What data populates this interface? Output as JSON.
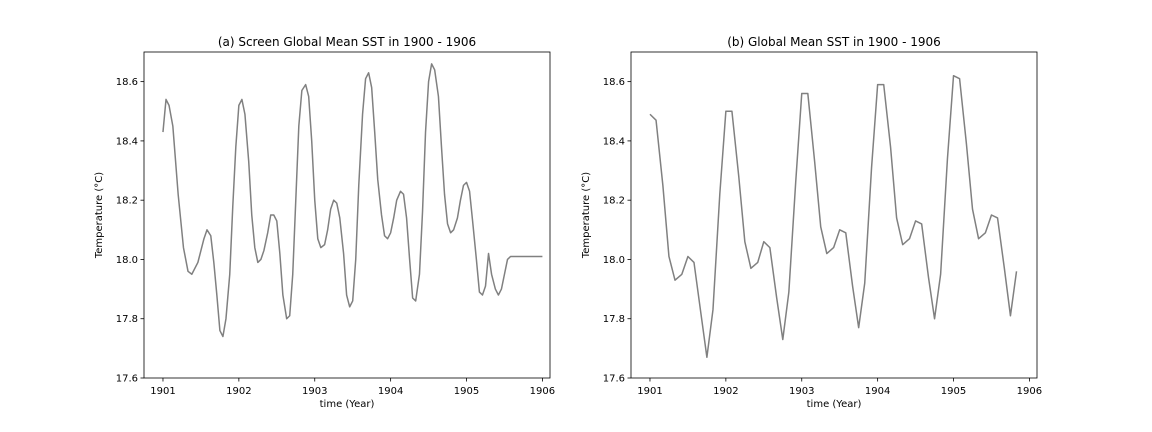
{
  "chart_data": [
    {
      "type": "line",
      "title": "(a) Screen Global Mean SST in 1900 - 1906",
      "xlabel": "time (Year)",
      "ylabel": "Temperature (°C)",
      "xlim": [
        1900.75,
        1906.1
      ],
      "ylim": [
        17.6,
        18.7
      ],
      "xticks": [
        1901,
        1902,
        1903,
        1904,
        1905,
        1906
      ],
      "yticks": [
        17.6,
        17.8,
        18.0,
        18.2,
        18.4,
        18.6
      ],
      "grid": false,
      "series": [
        {
          "color": "#808080",
          "x": [
            1901.0,
            1901.04,
            1901.08,
            1901.13,
            1901.2,
            1901.27,
            1901.33,
            1901.38,
            1901.46,
            1901.54,
            1901.58,
            1901.63,
            1901.67,
            1901.71,
            1901.75,
            1901.79,
            1901.83,
            1901.88,
            1901.92,
            1901.96,
            1902.0,
            1902.04,
            1902.08,
            1902.13,
            1902.17,
            1902.21,
            1902.25,
            1902.29,
            1902.33,
            1902.38,
            1902.42,
            1902.46,
            1902.5,
            1902.54,
            1902.58,
            1902.63,
            1902.67,
            1902.71,
            1902.75,
            1902.79,
            1902.83,
            1902.88,
            1902.92,
            1902.96,
            1903.0,
            1903.04,
            1903.08,
            1903.13,
            1903.17,
            1903.21,
            1903.25,
            1903.29,
            1903.33,
            1903.38,
            1903.42,
            1903.46,
            1903.5,
            1903.54,
            1903.58,
            1903.63,
            1903.67,
            1903.71,
            1903.75,
            1903.79,
            1903.83,
            1903.88,
            1903.92,
            1903.96,
            1904.0,
            1904.04,
            1904.08,
            1904.13,
            1904.17,
            1904.21,
            1904.25,
            1904.29,
            1904.33,
            1904.38,
            1904.42,
            1904.46,
            1904.5,
            1904.54,
            1904.58,
            1904.63,
            1904.67,
            1904.71,
            1904.75,
            1904.79,
            1904.83,
            1904.88,
            1904.92,
            1904.96,
            1905.0,
            1905.04,
            1905.08,
            1905.13,
            1905.17,
            1905.21,
            1905.25,
            1905.29,
            1905.33,
            1905.38,
            1905.42,
            1905.46,
            1905.5,
            1905.54,
            1905.58,
            1905.63,
            1905.67,
            1905.71,
            1905.75,
            1905.79,
            1905.83,
            1905.88,
            1905.92,
            1905.96,
            1906.0
          ],
          "y": [
            18.43,
            18.54,
            18.52,
            18.45,
            18.22,
            18.04,
            17.96,
            17.95,
            17.99,
            18.07,
            18.1,
            18.08,
            17.99,
            17.88,
            17.76,
            17.74,
            17.8,
            17.95,
            18.18,
            18.38,
            18.52,
            18.54,
            18.49,
            18.33,
            18.15,
            18.04,
            17.99,
            18.0,
            18.03,
            18.09,
            18.15,
            18.15,
            18.13,
            18.02,
            17.88,
            17.8,
            17.81,
            17.95,
            18.2,
            18.45,
            18.57,
            18.59,
            18.55,
            18.4,
            18.2,
            18.07,
            18.04,
            18.05,
            18.1,
            18.17,
            18.2,
            18.19,
            18.14,
            18.02,
            17.88,
            17.84,
            17.86,
            18.0,
            18.25,
            18.49,
            18.61,
            18.63,
            18.58,
            18.43,
            18.27,
            18.15,
            18.08,
            18.07,
            18.09,
            18.14,
            18.2,
            18.23,
            18.22,
            18.14,
            18.0,
            17.87,
            17.86,
            17.95,
            18.16,
            18.43,
            18.6,
            18.66,
            18.64,
            18.55,
            18.38,
            18.22,
            18.12,
            18.09,
            18.1,
            18.14,
            18.2,
            18.25,
            18.26,
            18.23,
            18.13,
            18.0,
            17.89,
            17.88,
            17.91,
            18.02,
            17.95,
            17.9,
            17.88,
            17.9,
            17.95,
            18.0,
            18.01,
            18.01,
            18.01,
            18.01,
            18.01,
            18.01,
            18.01,
            18.01,
            18.01,
            18.01,
            18.01
          ]
        }
      ]
    },
    {
      "type": "line",
      "title": "(b) Global Mean SST in 1900 - 1906",
      "xlabel": "time (Year)",
      "ylabel": "Temperature (°C)",
      "xlim": [
        1900.75,
        1906.1
      ],
      "ylim": [
        17.6,
        18.7
      ],
      "xticks": [
        1901,
        1902,
        1903,
        1904,
        1905,
        1906
      ],
      "yticks": [
        17.6,
        17.8,
        18.0,
        18.2,
        18.4,
        18.6
      ],
      "grid": false,
      "series": [
        {
          "color": "#808080",
          "x": [
            1901.0,
            1901.08,
            1901.17,
            1901.25,
            1901.33,
            1901.42,
            1901.5,
            1901.58,
            1901.67,
            1901.75,
            1901.83,
            1901.92,
            1902.0,
            1902.08,
            1902.17,
            1902.25,
            1902.33,
            1902.42,
            1902.5,
            1902.58,
            1902.67,
            1902.75,
            1902.83,
            1902.92,
            1903.0,
            1903.08,
            1903.17,
            1903.25,
            1903.33,
            1903.42,
            1903.5,
            1903.58,
            1903.67,
            1903.75,
            1903.83,
            1903.92,
            1904.0,
            1904.08,
            1904.17,
            1904.25,
            1904.33,
            1904.42,
            1904.5,
            1904.58,
            1904.67,
            1904.75,
            1904.83,
            1904.92,
            1905.0,
            1905.08,
            1905.17,
            1905.25,
            1905.33,
            1905.42,
            1905.5,
            1905.58,
            1905.67,
            1905.75,
            1905.83
          ],
          "y": [
            18.49,
            18.47,
            18.25,
            18.01,
            17.93,
            17.95,
            18.01,
            17.99,
            17.82,
            17.67,
            17.83,
            18.22,
            18.5,
            18.5,
            18.28,
            18.06,
            17.97,
            17.99,
            18.06,
            18.04,
            17.87,
            17.73,
            17.89,
            18.26,
            18.56,
            18.56,
            18.33,
            18.11,
            18.02,
            18.04,
            18.1,
            18.09,
            17.91,
            17.77,
            17.92,
            18.31,
            18.59,
            18.59,
            18.38,
            18.14,
            18.05,
            18.07,
            18.13,
            18.12,
            17.94,
            17.8,
            17.95,
            18.34,
            18.62,
            18.61,
            18.39,
            18.17,
            18.07,
            18.09,
            18.15,
            18.14,
            17.97,
            17.81,
            17.96
          ]
        }
      ]
    }
  ]
}
